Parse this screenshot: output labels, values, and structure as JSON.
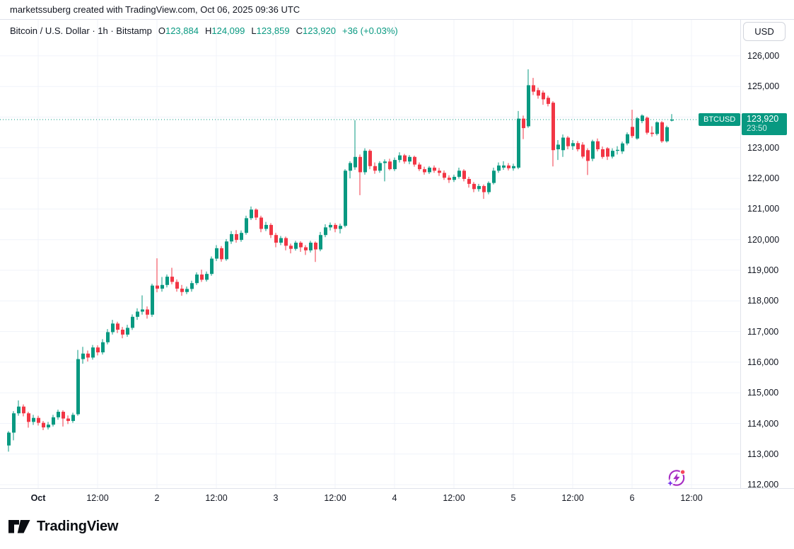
{
  "attribution": "marketssuberg created with TradingView.com, Oct 06, 2025 09:36 UTC",
  "symbol_bar": {
    "title": "Bitcoin / U.S. Dollar · 1h · Bitstamp",
    "o_label": "O",
    "o_value": "123,884",
    "h_label": "H",
    "h_value": "124,099",
    "l_label": "L",
    "l_value": "123,859",
    "c_label": "C",
    "c_value": "123,920",
    "change": "+36 (+0.03%)"
  },
  "currency_button": "USD",
  "price_label": {
    "symbol": "BTCUSD",
    "price": "123,920",
    "countdown": "23:50"
  },
  "logo_text": "TradingView",
  "colors": {
    "up": "#089981",
    "down": "#F23645",
    "grid": "#F0F3FA",
    "border": "#E0E3EB",
    "text": "#131722",
    "price_line": "#089981",
    "flag_bg": "#089981",
    "icon_purple": "#A62BC3",
    "icon_star": "#7C3AED",
    "icon_red": "#F6455D"
  },
  "chart_data": {
    "type": "candlestick",
    "title": "Bitcoin / U.S. Dollar",
    "symbol": "BTCUSD",
    "exchange": "Bitstamp",
    "interval": "1h",
    "legend": [
      "up candles teal #089981",
      "down candles red #F23645"
    ],
    "grid": true,
    "y_axis_side": "right",
    "ylim": [
      111900,
      127200
    ],
    "y_ticks": [
      126000,
      125000,
      124000,
      123000,
      122000,
      121000,
      120000,
      119000,
      118000,
      117000,
      116000,
      115000,
      114000,
      113000,
      112000
    ],
    "x_ticks": [
      {
        "label": "Oct",
        "bold": true
      },
      {
        "label": "12:00",
        "bold": false
      },
      {
        "label": "2",
        "bold": false
      },
      {
        "label": "12:00",
        "bold": false
      },
      {
        "label": "3",
        "bold": false
      },
      {
        "label": "12:00",
        "bold": false
      },
      {
        "label": "4",
        "bold": false
      },
      {
        "label": "12:00",
        "bold": false
      },
      {
        "label": "5",
        "bold": false
      },
      {
        "label": "12:00",
        "bold": false
      },
      {
        "label": "6",
        "bold": false
      },
      {
        "label": "12:00",
        "bold": false
      }
    ],
    "current_price": 123920,
    "last_bar_ohlc": {
      "open": 123884,
      "high": 124099,
      "low": 123859,
      "close": 123920
    },
    "candles": [
      [
        113280,
        113750,
        113080,
        113700
      ],
      [
        113700,
        114400,
        113450,
        114330
      ],
      [
        114330,
        114750,
        114250,
        114550
      ],
      [
        114550,
        114620,
        114230,
        114330
      ],
      [
        114330,
        114380,
        113860,
        114050
      ],
      [
        114050,
        114280,
        113950,
        114180
      ],
      [
        114180,
        114250,
        113930,
        114020
      ],
      [
        114020,
        114080,
        113780,
        113870
      ],
      [
        113870,
        114050,
        113800,
        113960
      ],
      [
        113960,
        114280,
        113900,
        114200
      ],
      [
        114200,
        114450,
        114120,
        114380
      ],
      [
        114380,
        114430,
        113900,
        114160
      ],
      [
        114160,
        114260,
        113980,
        114080
      ],
      [
        114080,
        114350,
        114020,
        114280
      ],
      [
        114300,
        116400,
        114250,
        116100
      ],
      [
        116100,
        116500,
        115950,
        116280
      ],
      [
        116280,
        116380,
        116020,
        116150
      ],
      [
        116150,
        116560,
        116080,
        116480
      ],
      [
        116480,
        116550,
        116220,
        116320
      ],
      [
        116320,
        116750,
        116250,
        116650
      ],
      [
        116650,
        117080,
        116580,
        116980
      ],
      [
        116980,
        117380,
        116900,
        117260
      ],
      [
        117260,
        117320,
        116950,
        117060
      ],
      [
        117060,
        117150,
        116780,
        116900
      ],
      [
        116900,
        117220,
        116830,
        117120
      ],
      [
        117120,
        117560,
        117050,
        117480
      ],
      [
        117480,
        117760,
        117380,
        117650
      ],
      [
        117650,
        118180,
        117550,
        117720
      ],
      [
        117720,
        117820,
        117420,
        117550
      ],
      [
        117550,
        118560,
        117480,
        118500
      ],
      [
        118500,
        119390,
        118280,
        118400
      ],
      [
        118400,
        118780,
        118300,
        118520
      ],
      [
        118520,
        118860,
        118440,
        118790
      ],
      [
        118790,
        119080,
        118540,
        118620
      ],
      [
        118620,
        118700,
        118300,
        118400
      ],
      [
        118400,
        118520,
        118170,
        118290
      ],
      [
        118290,
        118470,
        118220,
        118390
      ],
      [
        118390,
        118660,
        118300,
        118580
      ],
      [
        118580,
        118930,
        118520,
        118860
      ],
      [
        118860,
        119020,
        118620,
        118690
      ],
      [
        118690,
        118960,
        118630,
        118880
      ],
      [
        118880,
        119450,
        118820,
        119380
      ],
      [
        119380,
        119820,
        119300,
        119720
      ],
      [
        119720,
        119790,
        119280,
        119360
      ],
      [
        119360,
        120020,
        119310,
        119940
      ],
      [
        119940,
        120280,
        119860,
        120180
      ],
      [
        120180,
        120310,
        119900,
        119990
      ],
      [
        119990,
        120300,
        119930,
        120220
      ],
      [
        120220,
        120780,
        120160,
        120700
      ],
      [
        120700,
        121080,
        120640,
        120980
      ],
      [
        120980,
        121020,
        120640,
        120720
      ],
      [
        120720,
        120780,
        120240,
        120350
      ],
      [
        120350,
        120580,
        120280,
        120480
      ],
      [
        120480,
        120540,
        120050,
        120150
      ],
      [
        120150,
        120220,
        119750,
        119900
      ],
      [
        119900,
        120120,
        119820,
        120050
      ],
      [
        120050,
        120100,
        119650,
        119800
      ],
      [
        119800,
        119870,
        119550,
        119700
      ],
      [
        119700,
        119960,
        119640,
        119900
      ],
      [
        119900,
        119950,
        119600,
        119750
      ],
      [
        119750,
        119820,
        119500,
        119650
      ],
      [
        119650,
        119960,
        119580,
        119900
      ],
      [
        119900,
        119940,
        119270,
        119680
      ],
      [
        119680,
        120250,
        119620,
        120150
      ],
      [
        120150,
        120500,
        120080,
        120400
      ],
      [
        120400,
        120560,
        120300,
        120480
      ],
      [
        120480,
        120540,
        120240,
        120350
      ],
      [
        120350,
        120520,
        120200,
        120450
      ],
      [
        120450,
        122300,
        120400,
        122250
      ],
      [
        122250,
        122560,
        122000,
        122500
      ],
      [
        122360,
        123900,
        122280,
        122700
      ],
      [
        122700,
        122780,
        121450,
        122200
      ],
      [
        122200,
        122980,
        122120,
        122900
      ],
      [
        122900,
        122950,
        122300,
        122400
      ],
      [
        122400,
        122520,
        122150,
        122250
      ],
      [
        122250,
        122560,
        122180,
        122500
      ],
      [
        122500,
        122620,
        121900,
        122550
      ],
      [
        122550,
        122640,
        122260,
        122300
      ],
      [
        122300,
        122680,
        122240,
        122600
      ],
      [
        122600,
        122850,
        122520,
        122750
      ],
      [
        122750,
        122800,
        122480,
        122550
      ],
      [
        122550,
        122760,
        122460,
        122700
      ],
      [
        122700,
        122740,
        122380,
        122450
      ],
      [
        122450,
        122520,
        122240,
        122300
      ],
      [
        122300,
        122380,
        122120,
        122200
      ],
      [
        122200,
        122400,
        122140,
        122350
      ],
      [
        122350,
        122420,
        122180,
        122250
      ],
      [
        122250,
        122340,
        122080,
        122180
      ],
      [
        122180,
        122260,
        121950,
        122020
      ],
      [
        122020,
        122100,
        121850,
        121950
      ],
      [
        121950,
        122120,
        121880,
        122050
      ],
      [
        122050,
        122350,
        121990,
        122250
      ],
      [
        122250,
        122300,
        121900,
        121980
      ],
      [
        121980,
        122050,
        121700,
        121820
      ],
      [
        121820,
        121880,
        121550,
        121650
      ],
      [
        121650,
        121820,
        121570,
        121750
      ],
      [
        121750,
        121800,
        121330,
        121550
      ],
      [
        121550,
        121900,
        121480,
        121850
      ],
      [
        121850,
        122350,
        121800,
        122250
      ],
      [
        122250,
        122520,
        122180,
        122420
      ],
      [
        122350,
        122560,
        122280,
        122420
      ],
      [
        122420,
        122500,
        122260,
        122330
      ],
      [
        122330,
        122480,
        122250,
        122400
      ],
      [
        122350,
        124200,
        122300,
        123950
      ],
      [
        123950,
        124050,
        123280,
        123640
      ],
      [
        123700,
        125560,
        123650,
        125040
      ],
      [
        125040,
        125280,
        124720,
        124830
      ],
      [
        124880,
        124960,
        124600,
        124700
      ],
      [
        124800,
        124870,
        124400,
        124580
      ],
      [
        124630,
        124700,
        124350,
        124430
      ],
      [
        124470,
        124520,
        122390,
        122920
      ],
      [
        122950,
        123250,
        122600,
        123100
      ],
      [
        122920,
        123430,
        122700,
        123330
      ],
      [
        123330,
        123380,
        122950,
        123050
      ],
      [
        123050,
        123250,
        122930,
        123150
      ],
      [
        123150,
        123220,
        122880,
        122950
      ],
      [
        123100,
        123180,
        122650,
        122710
      ],
      [
        122920,
        122980,
        122110,
        122570
      ],
      [
        122640,
        123260,
        122560,
        123210
      ],
      [
        123210,
        123300,
        122880,
        122950
      ],
      [
        122950,
        123040,
        122640,
        122700
      ],
      [
        122980,
        123020,
        122600,
        122710
      ],
      [
        122710,
        122980,
        122650,
        122900
      ],
      [
        122900,
        123050,
        122780,
        122930
      ],
      [
        122880,
        123200,
        122800,
        123140
      ],
      [
        123140,
        123500,
        123080,
        123440
      ],
      [
        123680,
        124240,
        123320,
        123380
      ],
      [
        123300,
        124000,
        123260,
        123960
      ],
      [
        123870,
        124090,
        123800,
        124050
      ],
      [
        123980,
        124020,
        123430,
        123490
      ],
      [
        123490,
        123700,
        123360,
        123450
      ],
      [
        123450,
        123860,
        123400,
        123830
      ],
      [
        123830,
        123870,
        123160,
        123210
      ],
      [
        123210,
        123720,
        123170,
        123670
      ],
      [
        123884,
        124099,
        123859,
        123920
      ]
    ]
  }
}
